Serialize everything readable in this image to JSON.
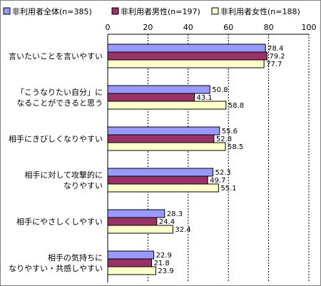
{
  "chart_data": {
    "type": "bar",
    "orientation": "horizontal",
    "categories": [
      "言いたいことを言いやすい",
      "「こうなりたい自分」に\nなることができると思う",
      "相手にきびしくなりやすい",
      "相手に対して攻撃的に\nなりやすい",
      "相手にやさしくしやすい",
      "相手の気持ちに\nなりやすい・共感しやすい"
    ],
    "series": [
      {
        "name": "非利用者全体(n=385)",
        "color": "#9999ff",
        "values": [
          78.4,
          50.8,
          55.6,
          52.3,
          28.3,
          22.9
        ]
      },
      {
        "name": "非利用者男性(n=197)",
        "color": "#993366",
        "values": [
          79.2,
          43.1,
          52.8,
          49.7,
          24.4,
          21.8
        ]
      },
      {
        "name": "非利用者女性(n=188)",
        "color": "#ffffcc",
        "values": [
          77.7,
          58.8,
          58.5,
          55.1,
          32.4,
          23.9
        ]
      }
    ],
    "xlim": [
      0,
      100
    ],
    "xticks": [
      0,
      20,
      40,
      60,
      80,
      100
    ],
    "grid": "vertical dashed",
    "legend": "top",
    "title": "",
    "xlabel": "",
    "ylabel": ""
  }
}
